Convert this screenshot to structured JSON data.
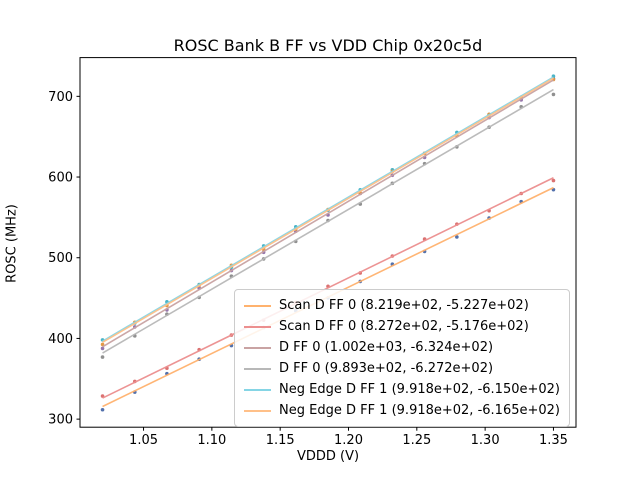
{
  "chart_data": {
    "type": "line",
    "title": "ROSC Bank B FF vs VDD Chip 0x20c5d",
    "xlabel": "VDDD (V)",
    "ylabel": "ROSC (MHz)",
    "xlim": [
      1.0035,
      1.3665
    ],
    "ylim": [
      290,
      748
    ],
    "xticks": [
      1.05,
      1.1,
      1.15,
      1.2,
      1.25,
      1.3,
      1.35
    ],
    "xtick_labels": [
      "1.05",
      "1.10",
      "1.15",
      "1.20",
      "1.25",
      "1.30",
      "1.35"
    ],
    "yticks": [
      300,
      400,
      500,
      600,
      700
    ],
    "ytick_labels": [
      "300",
      "400",
      "500",
      "600",
      "700"
    ],
    "grid": false,
    "legend_position": "lower right inside",
    "x_points": [
      1.02,
      1.0436,
      1.0671,
      1.0907,
      1.1143,
      1.1379,
      1.1614,
      1.185,
      1.2086,
      1.2321,
      1.2557,
      1.2793,
      1.3029,
      1.3264,
      1.35
    ],
    "series": [
      {
        "label": "Scan D FF 0 (8.219e+02, -5.227e+02)",
        "slope": 821.9,
        "intercept": -522.7,
        "line_color": "#ffb26e",
        "point_color": "#4a69a8",
        "residuals": [
          -4.0,
          -1.5,
          2.0,
          0.5,
          -2.0,
          1.0,
          2.5,
          -1.0,
          0.0,
          2.0,
          -1.5,
          -3.0,
          1.0,
          2.0,
          -2.5
        ]
      },
      {
        "label": "Scan D FF 0 (8.272e+02, -5.176e+02)",
        "slope": 827.2,
        "intercept": -517.6,
        "line_color": "#ec8f8f",
        "point_color": "#d96a6a",
        "residuals": [
          2.5,
          1.0,
          -2.0,
          1.5,
          0.0,
          -1.0,
          1.5,
          2.0,
          -1.0,
          0.5,
          2.0,
          1.0,
          -2.0,
          0.0,
          -3.5
        ]
      },
      {
        "label": "D FF 0 (1.002e+03, -6.324e+02)",
        "slope": 1002.0,
        "intercept": -632.4,
        "line_color": "#c9a3a3",
        "point_color": "#8f6fa8",
        "residuals": [
          -2.0,
          1.0,
          -1.5,
          2.0,
          0.0,
          -1.0,
          1.5,
          -2.0,
          1.0,
          0.0,
          -1.5,
          2.0,
          0.5,
          -1.0,
          1.5
        ]
      },
      {
        "label": "D FF 0 (9.893e+02, -6.272e+02)",
        "slope": 989.3,
        "intercept": -627.2,
        "line_color": "#b8b8b8",
        "point_color": "#8a8a8a",
        "residuals": [
          -5.0,
          -2.0,
          1.5,
          -1.0,
          2.0,
          0.0,
          -1.5,
          1.0,
          -2.0,
          0.5,
          1.5,
          -1.0,
          0.0,
          2.0,
          -6.0
        ]
      },
      {
        "label": "Neg Edge D FF 1 (9.918e+02, -6.150e+02)",
        "slope": 991.8,
        "intercept": -615.0,
        "line_color": "#85d5e5",
        "point_color": "#3fb0c4",
        "residuals": [
          1.5,
          -1.0,
          2.0,
          0.0,
          -2.0,
          1.0,
          1.5,
          -1.5,
          0.5,
          2.0,
          -1.0,
          1.5,
          0.0,
          -2.0,
          1.0
        ]
      },
      {
        "label": "Neg Edge D FF 1 (9.918e+02, -6.165e+02)",
        "slope": 991.8,
        "intercept": -616.5,
        "line_color": "#ffc089",
        "point_color": "#e0923c",
        "residuals": [
          -2.5,
          1.5,
          -1.0,
          0.5,
          2.0,
          -1.5,
          0.0,
          1.0,
          -2.0,
          1.5,
          0.5,
          -1.0,
          2.0,
          0.0,
          -1.5
        ]
      }
    ]
  }
}
